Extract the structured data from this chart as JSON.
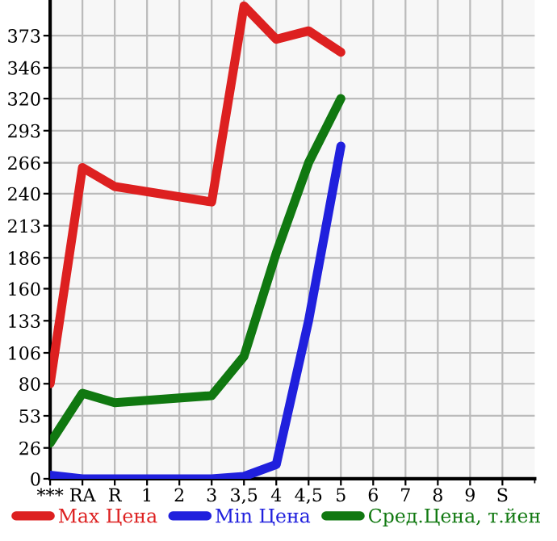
{
  "chart_data": {
    "type": "line",
    "categories": [
      "***",
      "RA",
      "R",
      "1",
      "2",
      "3",
      "3,5",
      "4",
      "4,5",
      "5",
      "6",
      "7",
      "8",
      "9",
      "S"
    ],
    "series": [
      {
        "name": "Max Цена",
        "color": "#dd2020",
        "values": [
          80,
          262,
          246,
          null,
          null,
          233,
          398,
          370,
          377,
          359,
          null,
          null,
          null,
          null,
          null
        ]
      },
      {
        "name": "Min Цена",
        "color": "#2020dd",
        "values": [
          3,
          0,
          0,
          0,
          0,
          0,
          2,
          12,
          133,
          280,
          null,
          null,
          null,
          null,
          null
        ]
      },
      {
        "name": "Сред.Цена, т.йен",
        "color": "#107810",
        "values": [
          30,
          72,
          64,
          null,
          null,
          70,
          103,
          190,
          266,
          320,
          null,
          null,
          null,
          null,
          null
        ]
      }
    ],
    "ylim": [
      0,
      403
    ],
    "yticks": [
      0,
      26,
      53,
      80,
      106,
      133,
      160,
      186,
      213,
      240,
      266,
      293,
      320,
      346,
      373
    ],
    "grid": true,
    "legend": "bottom",
    "marker": "none",
    "line_style": "solid"
  }
}
